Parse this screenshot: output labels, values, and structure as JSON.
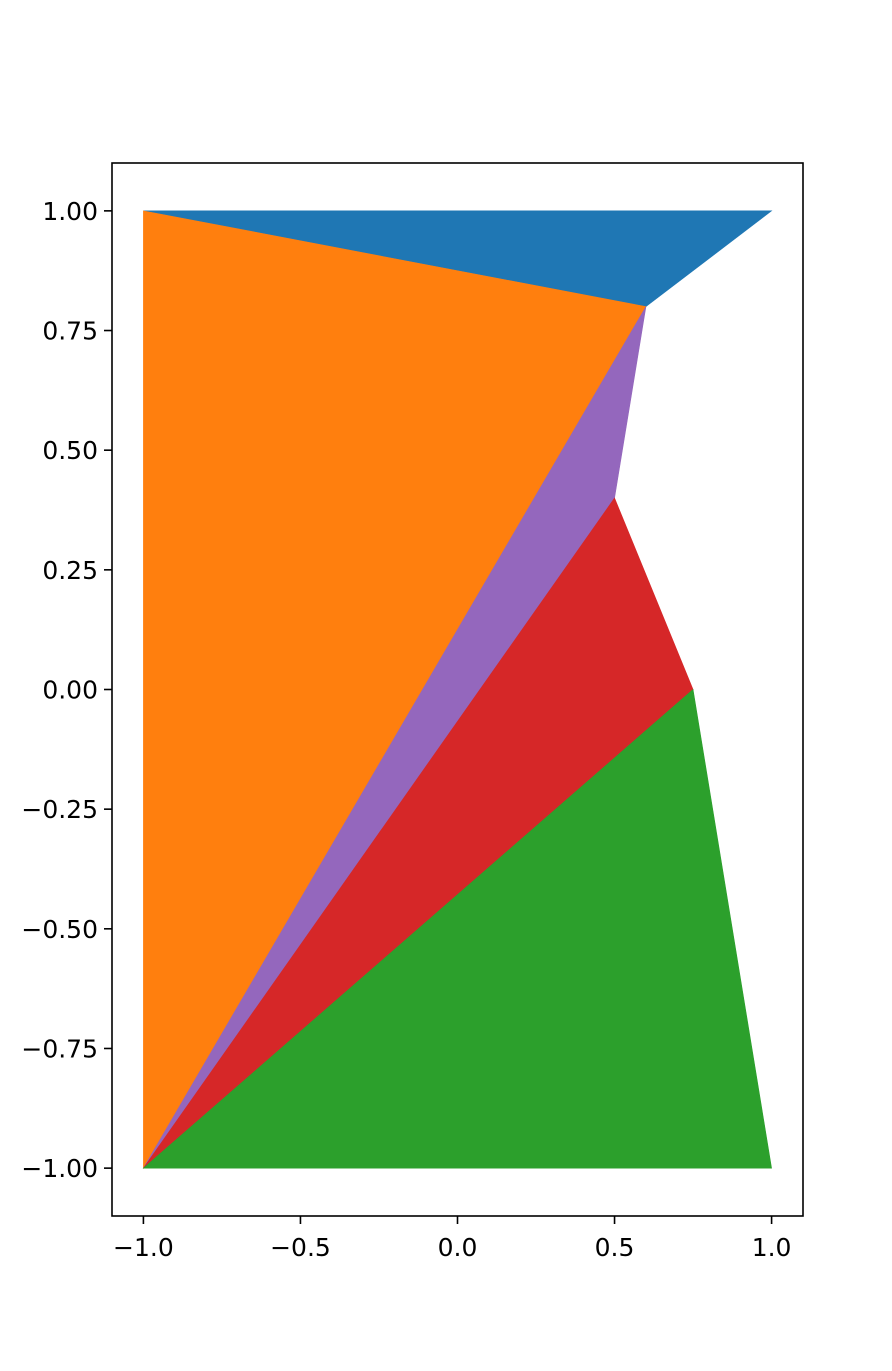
{
  "chart_data": {
    "type": "area",
    "title": "",
    "xlabel": "",
    "ylabel": "",
    "xlim": [
      -1.1,
      1.1
    ],
    "ylim": [
      -1.1,
      1.1
    ],
    "grid": false,
    "xticks": [
      -1.0,
      -0.5,
      0.0,
      0.5,
      1.0
    ],
    "xtick_labels": [
      "−1.0",
      "−0.5",
      "0.0",
      "0.5",
      "1.0"
    ],
    "yticks": [
      1.0,
      0.75,
      0.5,
      0.25,
      0.0,
      -0.25,
      -0.5,
      -0.75,
      -1.0
    ],
    "ytick_labels": [
      "1.00",
      "0.75",
      "0.50",
      "0.25",
      "0.00",
      "−0.25",
      "−0.50",
      "−0.75",
      "−1.00"
    ],
    "polygons": [
      {
        "color": "#1f77b4",
        "points": [
          [
            -1.0,
            1.0
          ],
          [
            1.0,
            1.0
          ],
          [
            0.6,
            0.8
          ]
        ]
      },
      {
        "color": "#ff7f0e",
        "points": [
          [
            -1.0,
            1.0
          ],
          [
            0.6,
            0.8
          ],
          [
            -1.0,
            -1.0
          ]
        ]
      },
      {
        "color": "#9467bd",
        "points": [
          [
            0.6,
            0.8
          ],
          [
            0.5,
            0.4
          ],
          [
            -1.0,
            -1.0
          ]
        ]
      },
      {
        "color": "#d62728",
        "points": [
          [
            0.5,
            0.4
          ],
          [
            0.75,
            0.0
          ],
          [
            -1.0,
            -1.0
          ]
        ]
      },
      {
        "color": "#2ca02c",
        "points": [
          [
            0.75,
            0.0
          ],
          [
            1.0,
            -1.0
          ],
          [
            -1.0,
            -1.0
          ]
        ]
      }
    ]
  }
}
